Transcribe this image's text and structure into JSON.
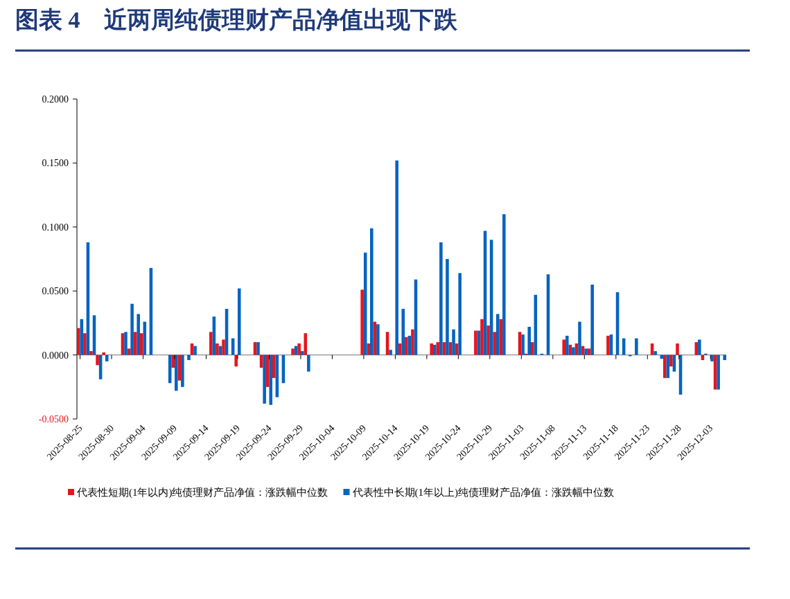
{
  "chart_data": {
    "type": "bar",
    "title": "图表 4　近两周纯债理财产品净值出现下跌",
    "categories": [
      "2025-08-25",
      null,
      null,
      null,
      null,
      "2025-08-30",
      null,
      null,
      null,
      null,
      "2025-09-04",
      null,
      null,
      null,
      null,
      "2025-09-09",
      null,
      null,
      null,
      null,
      "2025-09-14",
      null,
      null,
      null,
      null,
      "2025-09-19",
      null,
      null,
      null,
      null,
      "2025-09-24",
      null,
      null,
      null,
      null,
      "2025-09-29",
      null,
      null,
      null,
      null,
      "2025-10-04",
      null,
      null,
      null,
      null,
      "2025-10-09",
      null,
      null,
      null,
      null,
      "2025-10-14",
      null,
      null,
      null,
      null,
      "2025-10-19",
      null,
      null,
      null,
      null,
      "2025-10-24",
      null,
      null,
      null,
      null,
      "2025-10-29",
      null,
      null,
      null,
      null,
      "2025-11-03",
      null,
      null,
      null,
      null,
      "2025-11-08",
      null,
      null,
      null,
      null,
      "2025-11-13",
      null,
      null,
      null,
      null,
      "2025-11-18",
      null,
      null,
      null,
      null,
      "2025-11-23",
      null,
      null,
      null,
      null,
      "2025-11-28",
      null,
      null,
      null,
      null,
      "2025-12-03",
      null,
      null
    ],
    "series": [
      {
        "name": "代表性短期(1年以内)纯债理财产品净值：涨跌幅中位数",
        "color": "#e8141c",
        "values": [
          0.021,
          0.017,
          0.003,
          -0.008,
          0.002,
          null,
          null,
          0.017,
          0.005,
          0.018,
          0.017,
          0,
          null,
          null,
          0,
          -0.01,
          -0.02,
          0,
          0.009,
          null,
          null,
          0.018,
          0.009,
          0.012,
          0,
          -0.009,
          null,
          null,
          0.01,
          -0.01,
          -0.025,
          -0.018,
          0,
          null,
          0.005,
          0.009,
          0.017,
          null,
          null,
          null,
          null,
          null,
          null,
          null,
          null,
          0.051,
          0.009,
          0.026,
          null,
          0.018,
          0,
          0.009,
          0.014,
          0.02,
          null,
          null,
          0.009,
          0.01,
          0.01,
          0.01,
          0.009,
          null,
          null,
          0.019,
          0.028,
          0.023,
          0.018,
          0.028,
          null,
          null,
          0.018,
          0.001,
          0.01,
          0,
          0,
          null,
          null,
          0.012,
          0.008,
          0.009,
          0.007,
          0.005,
          null,
          null,
          0.015,
          0,
          0,
          0,
          0,
          null,
          null,
          0.009,
          0,
          -0.018,
          -0.009,
          0.009,
          null,
          null,
          0.01,
          -0.004,
          0,
          -0.027,
          0
        ]
      },
      {
        "name": "代表性中长期(1年以上)纯债理财产品净值：涨跌幅中位数",
        "color": "#0563c1",
        "values": [
          0.028,
          0.088,
          0.031,
          -0.019,
          -0.005,
          null,
          null,
          0.018,
          0.04,
          0.032,
          0.026,
          0.068,
          null,
          null,
          -0.022,
          -0.028,
          -0.025,
          -0.004,
          0.007,
          null,
          null,
          0.03,
          0.007,
          0.036,
          0.013,
          0.052,
          null,
          null,
          0.01,
          -0.038,
          -0.039,
          -0.033,
          -0.022,
          null,
          0.007,
          0.003,
          -0.013,
          null,
          null,
          null,
          null,
          null,
          null,
          null,
          null,
          0.08,
          0.099,
          0.024,
          null,
          0.004,
          0.152,
          0.036,
          0.015,
          0.059,
          null,
          null,
          0.008,
          0.088,
          0.075,
          0.02,
          0.064,
          null,
          null,
          0.019,
          0.097,
          0.09,
          0.032,
          0.11,
          null,
          null,
          0.016,
          0.022,
          0.047,
          0.001,
          0.063,
          null,
          null,
          0.015,
          0.006,
          0.026,
          0.005,
          0.055,
          null,
          null,
          0.016,
          0.049,
          0.013,
          -0.001,
          0.013,
          null,
          null,
          0.003,
          -0.003,
          -0.018,
          -0.013,
          -0.031,
          null,
          null,
          0.012,
          0.001,
          -0.005,
          -0.027,
          -0.004
        ]
      }
    ],
    "ylim": [
      -0.05,
      0.2
    ],
    "yticks": [
      {
        "value": -0.05,
        "label": "-0.0500"
      },
      {
        "value": 0,
        "label": "0.0000"
      },
      {
        "value": 0.05,
        "label": "0.0500"
      },
      {
        "value": 0.1,
        "label": "0.1000"
      },
      {
        "value": 0.15,
        "label": "0.1500"
      },
      {
        "value": 0.2,
        "label": "0.2000"
      }
    ],
    "legend": "bottom"
  }
}
